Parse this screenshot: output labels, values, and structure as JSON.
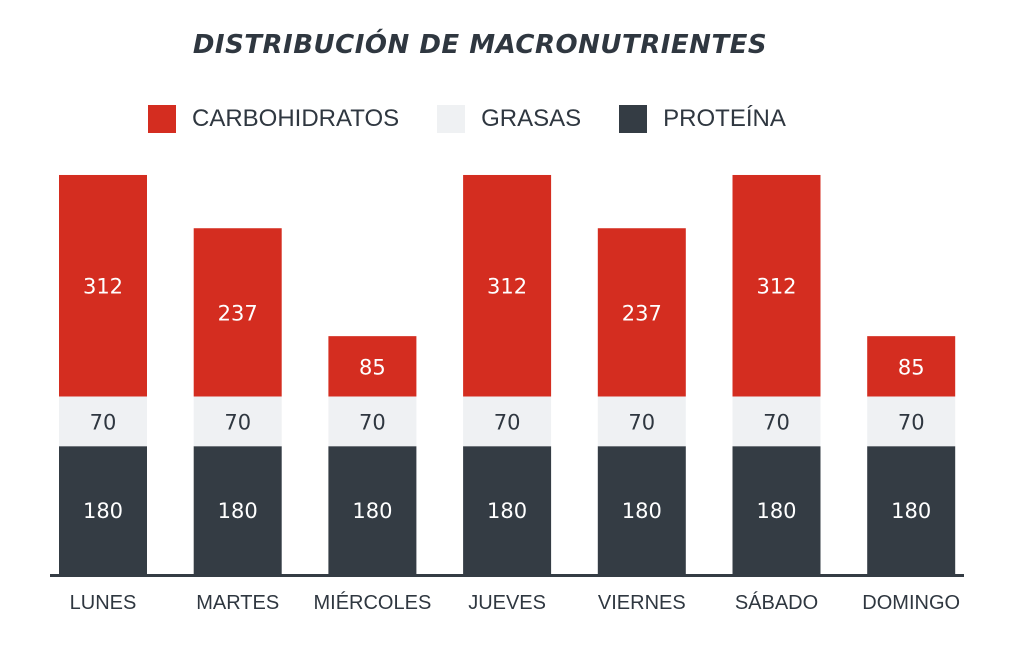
{
  "colors": {
    "carbs": "#d42d20",
    "fats": "#eff1f3",
    "protein": "#343c44",
    "axis": "#343c44",
    "text_dark": "#2f3740",
    "text_light": "#ffffff"
  },
  "chart_data": {
    "type": "bar",
    "stacked": true,
    "title": "DISTRIBUCIÓN DE MACRONUTRIENTES",
    "categories": [
      "LUNES",
      "MARTES",
      "MIÉRCOLES",
      "JUEVES",
      "VIERNES",
      "SÁBADO",
      "DOMINGO"
    ],
    "series": [
      {
        "name": "PROTEÍNA",
        "color_key": "protein",
        "values": [
          180,
          180,
          180,
          180,
          180,
          180,
          180
        ]
      },
      {
        "name": "GRASAS",
        "color_key": "fats",
        "values": [
          70,
          70,
          70,
          70,
          70,
          70,
          70
        ]
      },
      {
        "name": "CARBOHIDRATOS",
        "color_key": "carbs",
        "values": [
          312,
          237,
          85,
          312,
          237,
          312,
          85
        ]
      }
    ],
    "legend_order": [
      "CARBOHIDRATOS",
      "GRASAS",
      "PROTEÍNA"
    ],
    "legend_position": "top",
    "grid": false,
    "data_labels": true
  }
}
